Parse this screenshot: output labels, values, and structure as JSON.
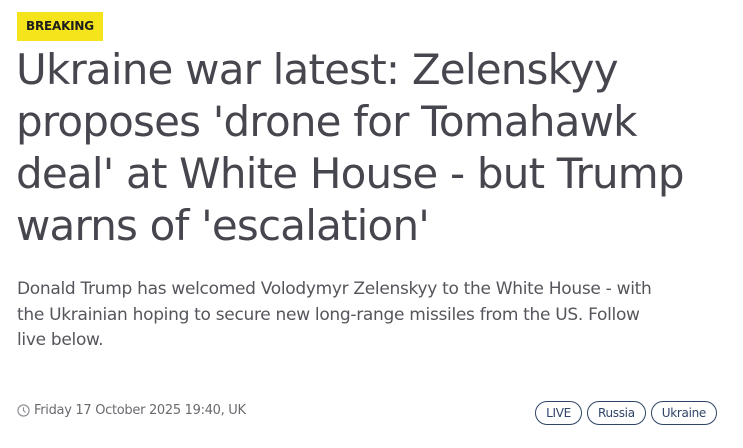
{
  "badge": "BREAKING",
  "headline": {
    "lines": [
      "Ukraine war latest: Zelenskyy",
      "proposes 'drone for Tomahawk",
      "deal' at White House - but Trump",
      "warns of 'escalation'"
    ]
  },
  "standfirst": {
    "lines": [
      "Donald Trump has welcomed Volodymyr Zelenskyy to the White House - with",
      "the Ukrainian hoping to secure new long-range missiles from the US. Follow",
      "live below."
    ]
  },
  "meta": {
    "icon": "clock-icon",
    "timestamp": "Friday 17 October 2025 19:40, UK"
  },
  "tags": [
    "LIVE",
    "Russia",
    "Ukraine"
  ],
  "colors": {
    "badge": "#f5e31c",
    "tag": "#2f4466"
  }
}
